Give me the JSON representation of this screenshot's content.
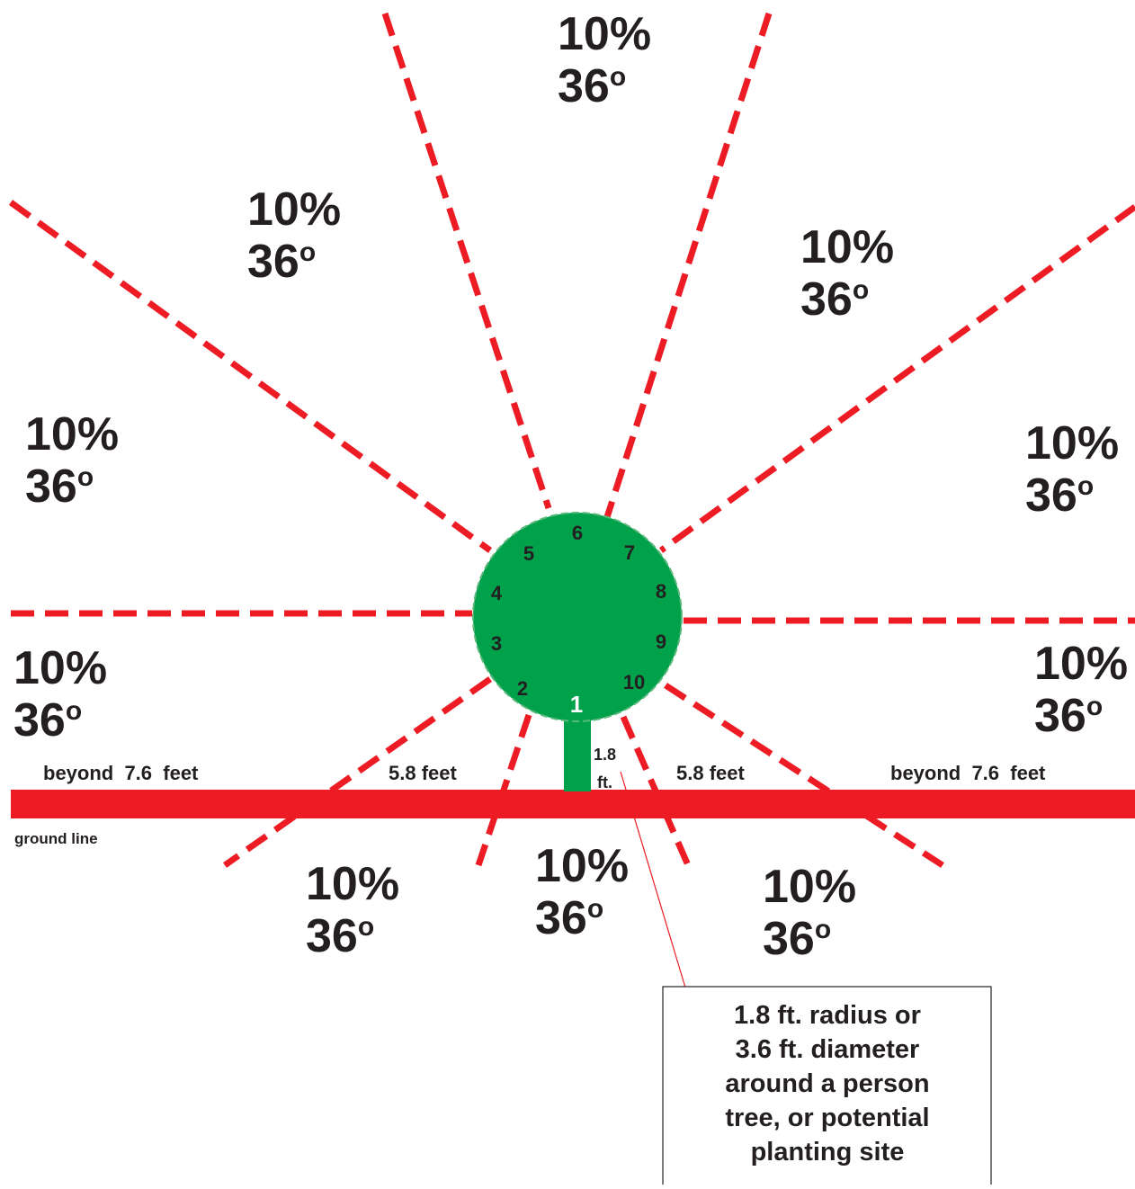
{
  "sectors": [
    {
      "percent": "10%",
      "degrees": "36",
      "degree_mark": "o"
    },
    {
      "percent": "10%",
      "degrees": "36",
      "degree_mark": "o"
    },
    {
      "percent": "10%",
      "degrees": "36",
      "degree_mark": "o"
    },
    {
      "percent": "10%",
      "degrees": "36",
      "degree_mark": "o"
    },
    {
      "percent": "10%",
      "degrees": "36",
      "degree_mark": "o"
    },
    {
      "percent": "10%",
      "degrees": "36",
      "degree_mark": "o"
    },
    {
      "percent": "10%",
      "degrees": "36",
      "degree_mark": "o"
    },
    {
      "percent": "10%",
      "degrees": "36",
      "degree_mark": "o"
    },
    {
      "percent": "10%",
      "degrees": "36",
      "degree_mark": "o"
    },
    {
      "percent": "10%",
      "degrees": "36",
      "degree_mark": "o"
    }
  ],
  "circle_numbers": [
    "1",
    "2",
    "3",
    "4",
    "5",
    "6",
    "7",
    "8",
    "9",
    "10"
  ],
  "distance_labels": [
    "beyond  7.6  feet",
    "5.8 feet",
    "1.8",
    "ft.",
    "5.8 feet",
    "beyond  7.6  feet"
  ],
  "ground_label": "ground line",
  "callout": [
    "1.8 ft. radius or",
    "3.6 ft. diameter",
    "around a person",
    "tree, or potential",
    "planting site"
  ]
}
